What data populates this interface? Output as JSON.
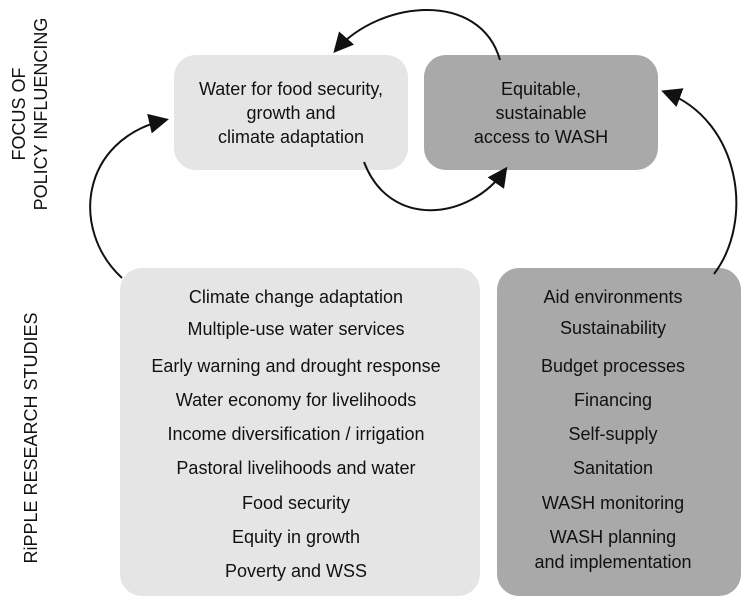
{
  "side_labels": {
    "top": [
      "FOCUS OF",
      "POLICY INFLUENCING"
    ],
    "bottom": "RiPPLE RESEARCH STUDIES"
  },
  "nodes": [
    {
      "label": [
        "Water for food security,",
        "growth and",
        "climate adaptation"
      ]
    },
    {
      "label": [
        "Equitable,",
        "sustainable",
        "access to WASH"
      ]
    }
  ],
  "lists": [
    {
      "items": [
        "Climate change adaptation",
        "Multiple-use water services",
        "Early warning and drought response",
        "Water economy for livelihoods",
        "Income diversification / irrigation",
        "Pastoral livelihoods and water",
        "Food security",
        "Equity in growth",
        "Poverty and WSS"
      ]
    },
    {
      "items": [
        "Aid environments",
        "Sustainability",
        "Budget processes",
        "Financing",
        "Self-supply",
        "Sanitation",
        "WASH monitoring",
        "WASH planning",
        "and implementation"
      ]
    }
  ]
}
